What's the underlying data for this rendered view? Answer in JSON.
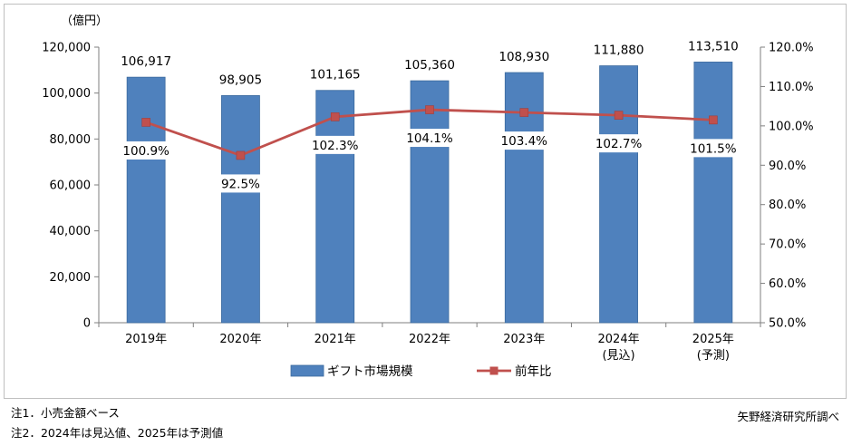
{
  "chart_data": {
    "type": "bar+line",
    "categories": [
      "2019年",
      "2020年",
      "2021年",
      "2022年",
      "2023年",
      "2024年",
      "2025年"
    ],
    "category_sublabels": [
      "",
      "",
      "",
      "",
      "",
      "(見込)",
      "(予測)"
    ],
    "series": [
      {
        "name": "ギフト市場規模",
        "type": "bar",
        "axis": "left",
        "values": [
          106917,
          98905,
          101165,
          105360,
          108930,
          111880,
          113510
        ],
        "labels": [
          "106,917",
          "98,905",
          "101,165",
          "105,360",
          "108,930",
          "111,880",
          "113,510"
        ],
        "color": "#4f81bd"
      },
      {
        "name": "前年比",
        "type": "line",
        "axis": "right",
        "values": [
          100.9,
          92.5,
          102.3,
          104.1,
          103.4,
          102.7,
          101.5
        ],
        "labels": [
          "100.9%",
          "92.5%",
          "102.3%",
          "104.1%",
          "103.4%",
          "102.7%",
          "101.5%"
        ],
        "color": "#c0504d"
      }
    ],
    "y_left": {
      "unit_label": "（億円）",
      "ylim": [
        0,
        120000
      ],
      "ticks": [
        "0",
        "20,000",
        "40,000",
        "60,000",
        "80,000",
        "100,000",
        "120,000"
      ]
    },
    "y_right": {
      "ylim": [
        50,
        120
      ],
      "ticks": [
        "50.0%",
        "60.0%",
        "70.0%",
        "80.0%",
        "90.0%",
        "100.0%",
        "110.0%",
        "120.0%"
      ]
    },
    "grid": false,
    "legend_position": "bottom"
  },
  "notes": [
    "注1．小売金額ベース",
    "注2．2024年は見込値、2025年は予測値"
  ],
  "source": "矢野経済研究所調べ"
}
